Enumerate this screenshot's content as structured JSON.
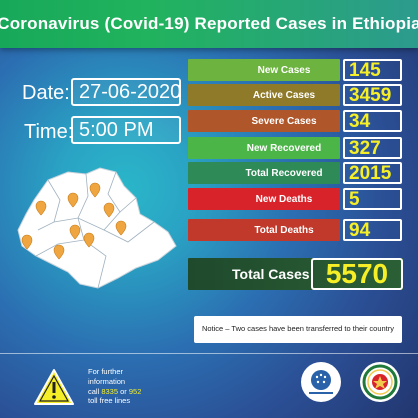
{
  "header": {
    "title": "Coronavirus (Covid-19) Reported Cases in Ethiopia"
  },
  "date": {
    "label": "Date:",
    "value": "27-06-2020"
  },
  "time": {
    "label": "Time:",
    "value": "5:00 PM"
  },
  "stats": [
    {
      "label": "New Cases",
      "value": "145",
      "color": "#6db33f"
    },
    {
      "label": "Active Cases",
      "value": "3459",
      "color": "#8f7a2a"
    },
    {
      "label": "Severe Cases",
      "value": "34",
      "color": "#b0562b"
    },
    {
      "label": "New Recovered",
      "value": "327",
      "color": "#4cb548"
    },
    {
      "label": "Total Recovered",
      "value": "2015",
      "color": "#2e8b57"
    },
    {
      "label": "New Deaths",
      "value": "5",
      "color": "#d8232a"
    },
    {
      "label": "Total Deaths",
      "value": "94",
      "color": "#c0392b"
    }
  ],
  "total": {
    "label": "Total Cases",
    "value": "5570"
  },
  "notice": "Notice – Two cases have been transferred to their country",
  "footer": {
    "line1": "For further",
    "line2": "information",
    "line3_pre": "call ",
    "num1": "8335",
    "line3_mid": " or ",
    "num2": "952",
    "line4": "toll free lines"
  },
  "colors": {
    "accent_yellow": "#f6ef27",
    "header_green": "#21b35d"
  },
  "icons": {
    "hazard": "warning-triangle-icon",
    "map_pins": "map-pin-icon",
    "logo_left": "public-health-institute-logo",
    "logo_right": "ministry-of-health-logo"
  }
}
